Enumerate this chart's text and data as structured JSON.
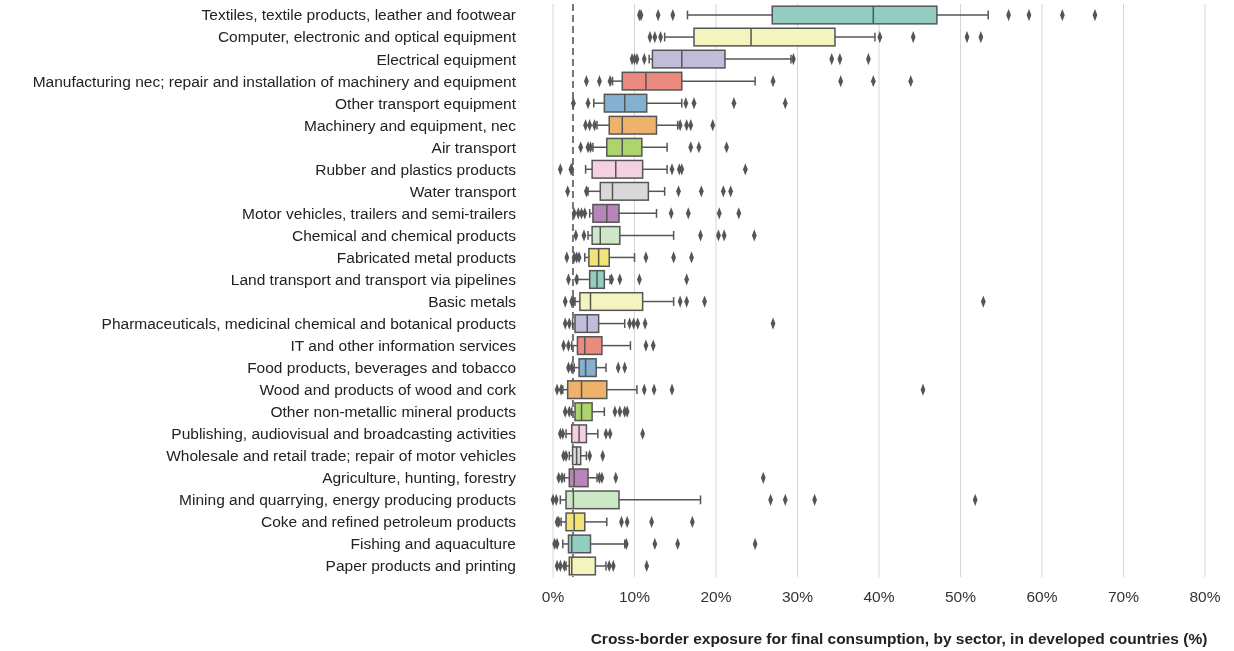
{
  "chart_data": {
    "type": "box",
    "orientation": "horizontal",
    "xlabel": "Cross-border exposure for final consumption, by sector, in developed countries (%)",
    "categories": [
      "Textiles, textile products, leather and footwear",
      "Computer, electronic and optical equipment",
      "Electrical equipment",
      "Manufacturing nec; repair and installation of machinery and equipment",
      "Other transport equipment",
      "Machinery and equipment, nec ",
      "Air transport",
      "Rubber and plastics products",
      "Water transport",
      "Motor vehicles, trailers and semi-trailers",
      "Chemical and chemical products",
      "Fabricated metal products",
      "Land transport and transport via pipelines",
      "Basic metals",
      "Pharmaceuticals, medicinal chemical and botanical products",
      "IT and other information services",
      "Food products, beverages and tobacco",
      "Wood and products of wood and cork",
      "Other non-metallic mineral products",
      "Publishing, audiovisual and broadcasting activities",
      "Wholesale and retail trade; repair of motor vehicles",
      "Agriculture, hunting, forestry",
      "Mining and quarrying, energy producing products",
      "Coke and refined petroleum products",
      "Fishing and aquaculture",
      "Paper products and printing"
    ],
    "boxes": [
      {
        "low": 16.5,
        "q1": 26.9,
        "median": 39.3,
        "q3": 47.1,
        "high": 53.4,
        "outliers": [
          10.6,
          10.8,
          12.9,
          14.7,
          55.9,
          58.4,
          62.5,
          66.5
        ]
      },
      {
        "low": 13.7,
        "q1": 17.3,
        "median": 24.3,
        "q3": 34.6,
        "high": 39.5,
        "outliers": [
          11.9,
          12.5,
          13.2,
          40.1,
          44.2,
          50.8,
          52.5
        ]
      },
      {
        "low": 11.8,
        "q1": 12.2,
        "median": 15.8,
        "q3": 21.1,
        "high": 29.2,
        "outliers": [
          9.7,
          10.0,
          10.3,
          11.2,
          29.5,
          34.2,
          35.2,
          38.7
        ]
      },
      {
        "low": 7.3,
        "q1": 8.5,
        "median": 11.4,
        "q3": 15.8,
        "high": 24.8,
        "outliers": [
          4.1,
          5.7,
          7.0,
          27.0,
          35.3,
          39.3,
          43.9
        ]
      },
      {
        "low": 5.0,
        "q1": 6.3,
        "median": 8.8,
        "q3": 11.5,
        "high": 15.8,
        "outliers": [
          2.5,
          4.3,
          16.3,
          17.3,
          22.2,
          28.5
        ]
      },
      {
        "low": 5.4,
        "q1": 6.9,
        "median": 8.5,
        "q3": 12.7,
        "high": 15.3,
        "outliers": [
          4.0,
          4.5,
          5.1,
          15.6,
          16.4,
          16.9,
          19.6
        ]
      },
      {
        "low": 4.9,
        "q1": 6.6,
        "median": 8.5,
        "q3": 10.9,
        "high": 14.0,
        "outliers": [
          3.4,
          4.3,
          4.6,
          16.9,
          17.9,
          21.3
        ]
      },
      {
        "low": 4.0,
        "q1": 4.8,
        "median": 7.7,
        "q3": 11.0,
        "high": 14.0,
        "outliers": [
          0.9,
          2.2,
          2.3,
          14.6,
          15.5,
          15.8,
          23.6
        ]
      },
      {
        "low": 4.3,
        "q1": 5.8,
        "median": 7.3,
        "q3": 11.7,
        "high": 13.7,
        "outliers": [
          1.8,
          4.1,
          15.4,
          18.2,
          20.9,
          21.8
        ]
      },
      {
        "low": 4.5,
        "q1": 4.9,
        "median": 6.6,
        "q3": 8.1,
        "high": 12.7,
        "outliers": [
          2.6,
          3.1,
          3.5,
          3.9,
          14.5,
          16.6,
          20.4,
          22.8
        ]
      },
      {
        "low": 4.3,
        "q1": 4.8,
        "median": 5.8,
        "q3": 8.2,
        "high": 14.8,
        "outliers": [
          2.8,
          3.8,
          18.1,
          20.3,
          21.0,
          24.7
        ]
      },
      {
        "low": 3.9,
        "q1": 4.4,
        "median": 5.6,
        "q3": 6.9,
        "high": 10.0,
        "outliers": [
          1.7,
          2.6,
          2.9,
          3.2,
          11.4,
          14.8,
          17.0
        ]
      },
      {
        "low": 3.0,
        "q1": 4.5,
        "median": 5.4,
        "q3": 6.3,
        "high": 7.0,
        "outliers": [
          1.9,
          2.9,
          7.2,
          8.2,
          10.6,
          16.4
        ]
      },
      {
        "low": 2.7,
        "q1": 3.3,
        "median": 4.6,
        "q3": 11.0,
        "high": 14.8,
        "outliers": [
          1.5,
          2.3,
          2.5,
          15.6,
          16.4,
          18.6,
          52.8
        ]
      },
      {
        "low": 2.4,
        "q1": 2.7,
        "median": 4.2,
        "q3": 5.6,
        "high": 8.8,
        "outliers": [
          1.5,
          2.0,
          9.4,
          9.9,
          10.4,
          11.3,
          27.0
        ]
      },
      {
        "low": 2.3,
        "q1": 3.0,
        "median": 3.9,
        "q3": 6.0,
        "high": 9.5,
        "outliers": [
          1.3,
          1.9,
          11.4,
          12.3
        ]
      },
      {
        "low": 2.6,
        "q1": 3.2,
        "median": 4.0,
        "q3": 5.3,
        "high": 6.5,
        "outliers": [
          1.9,
          2.3,
          8.0,
          8.8
        ]
      },
      {
        "low": 1.2,
        "q1": 1.8,
        "median": 3.5,
        "q3": 6.6,
        "high": 10.3,
        "outliers": [
          0.5,
          1.0,
          11.2,
          12.4,
          14.6,
          45.4
        ]
      },
      {
        "low": 2.3,
        "q1": 2.7,
        "median": 3.5,
        "q3": 4.8,
        "high": 6.3,
        "outliers": [
          1.5,
          2.0,
          7.6,
          8.2,
          8.8,
          9.1
        ]
      },
      {
        "low": 1.6,
        "q1": 2.3,
        "median": 3.2,
        "q3": 4.1,
        "high": 5.5,
        "outliers": [
          0.9,
          1.2,
          6.5,
          7.0,
          11.0
        ]
      },
      {
        "low": 2.0,
        "q1": 2.4,
        "median": 2.9,
        "q3": 3.4,
        "high": 4.1,
        "outliers": [
          1.3,
          1.6,
          4.5,
          6.1
        ]
      },
      {
        "low": 1.4,
        "q1": 2.0,
        "median": 2.6,
        "q3": 4.3,
        "high": 5.4,
        "outliers": [
          0.7,
          1.1,
          5.7,
          6.0,
          7.7,
          25.8
        ]
      },
      {
        "low": 0.9,
        "q1": 1.6,
        "median": 2.5,
        "q3": 8.1,
        "high": 18.1,
        "outliers": [
          0.0,
          0.4,
          26.7,
          28.5,
          32.1,
          51.8
        ]
      },
      {
        "low": 1.0,
        "q1": 1.6,
        "median": 2.6,
        "q3": 3.9,
        "high": 6.6,
        "outliers": [
          0.5,
          0.7,
          8.4,
          9.1,
          12.1,
          17.1
        ]
      },
      {
        "low": 1.2,
        "q1": 1.9,
        "median": 2.3,
        "q3": 4.6,
        "high": 8.8,
        "outliers": [
          0.2,
          0.5,
          9.0,
          12.5,
          15.3,
          24.8
        ]
      },
      {
        "low": 1.6,
        "q1": 2.0,
        "median": 2.3,
        "q3": 5.2,
        "high": 6.5,
        "outliers": [
          0.5,
          0.9,
          1.4,
          6.9,
          7.4,
          11.5
        ]
      }
    ],
    "colors": [
      "#93ccc1",
      "#f4f4be",
      "#c0bdd8",
      "#eb8a7e",
      "#86b0cf",
      "#efb26a",
      "#aed46e",
      "#f5d0e3",
      "#d9d9d9",
      "#b884b9",
      "#cde8c6",
      "#f2e477",
      "#93ccc1",
      "#f4f4be",
      "#c0bdd8",
      "#eb8a7e",
      "#86b0cf",
      "#efb26a",
      "#aed46e",
      "#f5d0e3",
      "#d9d9d9",
      "#b884b9",
      "#cde8c6",
      "#f2e477",
      "#93ccc1",
      "#f4f4be"
    ],
    "marker": "diamond",
    "xlim": [
      0,
      80
    ],
    "xticks": [
      {
        "value": 0,
        "label": "0%"
      },
      {
        "value": 10,
        "label": "10%"
      },
      {
        "value": 20,
        "label": "20%"
      },
      {
        "value": 30,
        "label": "30%"
      },
      {
        "value": 40,
        "label": "40%"
      },
      {
        "value": 50,
        "label": "50%"
      },
      {
        "value": 60,
        "label": "60%"
      },
      {
        "value": 70,
        "label": "70%"
      },
      {
        "value": 80,
        "label": "80%"
      }
    ],
    "grid": "x",
    "ref_lines": [
      {
        "axis": "x",
        "value": 2.45,
        "color": "#777777",
        "line_style": "dashed"
      }
    ]
  }
}
